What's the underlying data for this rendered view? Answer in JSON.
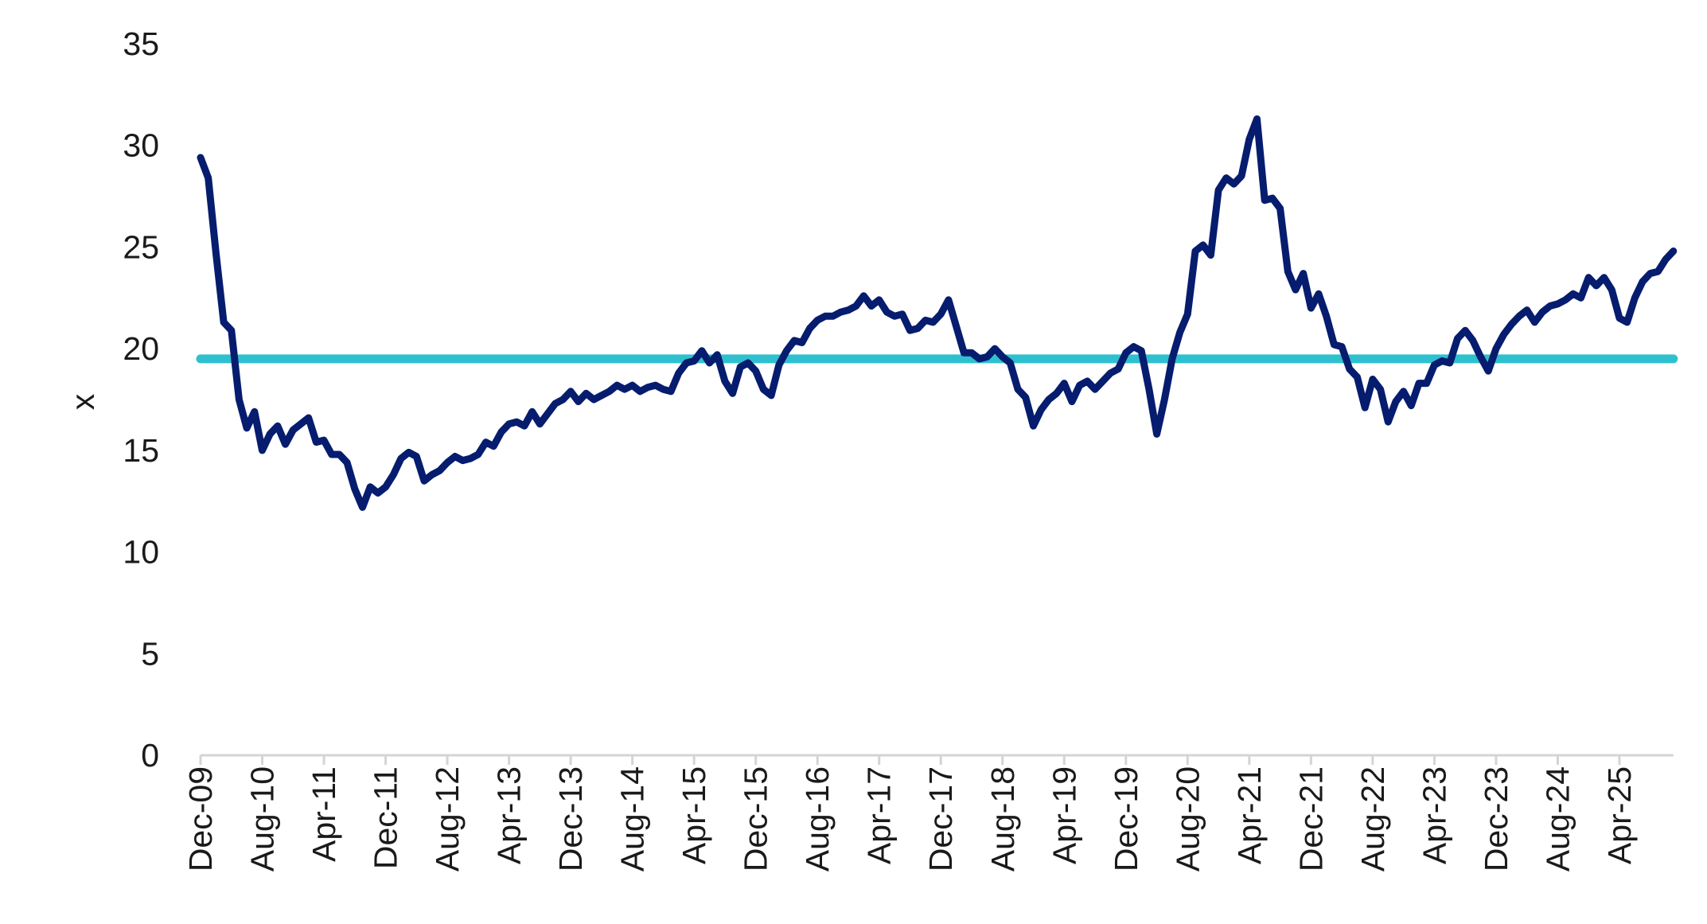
{
  "chart_data": {
    "type": "line",
    "title": "",
    "xlabel": "",
    "ylabel": "x",
    "ylim": [
      0,
      35
    ],
    "yticks": [
      0,
      5,
      10,
      15,
      20,
      25,
      30,
      35
    ],
    "xtick_labels": [
      "Dec-09",
      "Aug-10",
      "Apr-11",
      "Dec-11",
      "Aug-12",
      "Apr-13",
      "Dec-13",
      "Aug-14",
      "Apr-15",
      "Dec-15",
      "Aug-16",
      "Apr-17",
      "Dec-17",
      "Aug-18",
      "Apr-19",
      "Dec-19",
      "Aug-20",
      "Apr-21",
      "Dec-21",
      "Aug-22",
      "Apr-23",
      "Dec-23",
      "Aug-24",
      "Apr-25"
    ],
    "grid": false,
    "legend": "none",
    "colors": {
      "series": "#061c6e",
      "average": "#2fc0cf",
      "axis": "#d4d4d4"
    },
    "x": [
      "Dec-09",
      "Jan-10",
      "Feb-10",
      "Mar-10",
      "Apr-10",
      "May-10",
      "Jun-10",
      "Jul-10",
      "Aug-10",
      "Sep-10",
      "Oct-10",
      "Nov-10",
      "Dec-10",
      "Jan-11",
      "Feb-11",
      "Mar-11",
      "Apr-11",
      "May-11",
      "Jun-11",
      "Jul-11",
      "Aug-11",
      "Sep-11",
      "Oct-11",
      "Nov-11",
      "Dec-11",
      "Jan-12",
      "Feb-12",
      "Mar-12",
      "Apr-12",
      "May-12",
      "Jun-12",
      "Jul-12",
      "Aug-12",
      "Sep-12",
      "Oct-12",
      "Nov-12",
      "Dec-12",
      "Jan-13",
      "Feb-13",
      "Mar-13",
      "Apr-13",
      "May-13",
      "Jun-13",
      "Jul-13",
      "Aug-13",
      "Sep-13",
      "Oct-13",
      "Nov-13",
      "Dec-13",
      "Jan-14",
      "Feb-14",
      "Mar-14",
      "Apr-14",
      "May-14",
      "Jun-14",
      "Jul-14",
      "Aug-14",
      "Sep-14",
      "Oct-14",
      "Nov-14",
      "Dec-14",
      "Jan-15",
      "Feb-15",
      "Mar-15",
      "Apr-15",
      "May-15",
      "Jun-15",
      "Jul-15",
      "Aug-15",
      "Sep-15",
      "Oct-15",
      "Nov-15",
      "Dec-15",
      "Jan-16",
      "Feb-16",
      "Mar-16",
      "Apr-16",
      "May-16",
      "Jun-16",
      "Jul-16",
      "Aug-16",
      "Sep-16",
      "Oct-16",
      "Nov-16",
      "Dec-16",
      "Jan-17",
      "Feb-17",
      "Mar-17",
      "Apr-17",
      "May-17",
      "Jun-17",
      "Jul-17",
      "Aug-17",
      "Sep-17",
      "Oct-17",
      "Nov-17",
      "Dec-17",
      "Jan-18",
      "Feb-18",
      "Mar-18",
      "Apr-18",
      "May-18",
      "Jun-18",
      "Jul-18",
      "Aug-18",
      "Sep-18",
      "Oct-18",
      "Nov-18",
      "Dec-18",
      "Jan-19",
      "Feb-19",
      "Mar-19",
      "Apr-19",
      "May-19",
      "Jun-19",
      "Jul-19",
      "Aug-19",
      "Sep-19",
      "Oct-19",
      "Nov-19",
      "Dec-19",
      "Jan-20",
      "Feb-20",
      "Mar-20",
      "Apr-20",
      "May-20",
      "Jun-20",
      "Jul-20",
      "Aug-20",
      "Sep-20",
      "Oct-20",
      "Nov-20",
      "Dec-20",
      "Jan-21",
      "Feb-21",
      "Mar-21",
      "Apr-21",
      "May-21",
      "Jun-21",
      "Jul-21",
      "Aug-21",
      "Sep-21",
      "Oct-21",
      "Nov-21",
      "Dec-21",
      "Jan-22",
      "Feb-22",
      "Mar-22",
      "Apr-22",
      "May-22",
      "Jun-22",
      "Jul-22",
      "Aug-22",
      "Sep-22",
      "Oct-22",
      "Nov-22",
      "Dec-22",
      "Jan-23",
      "Feb-23",
      "Mar-23",
      "Apr-23",
      "May-23",
      "Jun-23",
      "Jul-23",
      "Aug-23",
      "Sep-23",
      "Oct-23",
      "Nov-23",
      "Dec-23",
      "Jan-24",
      "Feb-24",
      "Mar-24",
      "Apr-24",
      "May-24",
      "Jun-24",
      "Jul-24",
      "Aug-24",
      "Sep-24",
      "Oct-24",
      "Nov-24",
      "Dec-24",
      "Jan-25",
      "Feb-25",
      "Mar-25",
      "Apr-25",
      "May-25",
      "Jun-25",
      "Jul-25",
      "Aug-25",
      "Sep-25",
      "Oct-25",
      "Nov-25"
    ],
    "series": [
      {
        "values": [
          29.4,
          28.4,
          24.7,
          21.3,
          20.9,
          17.5,
          16.1,
          16.9,
          15.0,
          15.8,
          16.2,
          15.3,
          16.0,
          16.3,
          16.6,
          15.4,
          15.5,
          14.8,
          14.8,
          14.4,
          13.1,
          12.2,
          13.2,
          12.9,
          13.2,
          13.8,
          14.6,
          14.9,
          14.7,
          13.5,
          13.8,
          14.0,
          14.4,
          14.7,
          14.5,
          14.6,
          14.8,
          15.4,
          15.2,
          15.9,
          16.3,
          16.4,
          16.2,
          16.9,
          16.3,
          16.8,
          17.3,
          17.5,
          17.9,
          17.4,
          17.8,
          17.5,
          17.7,
          17.9,
          18.2,
          18.0,
          18.2,
          17.9,
          18.1,
          18.2,
          18.0,
          17.9,
          18.8,
          19.3,
          19.4,
          19.9,
          19.3,
          19.7,
          18.4,
          17.8,
          19.1,
          19.3,
          18.9,
          18.0,
          17.7,
          19.2,
          19.9,
          20.4,
          20.3,
          21.0,
          21.4,
          21.6,
          21.6,
          21.8,
          21.9,
          22.1,
          22.6,
          22.1,
          22.4,
          21.8,
          21.6,
          21.7,
          20.9,
          21.0,
          21.4,
          21.3,
          21.7,
          22.4,
          21.1,
          19.8,
          19.8,
          19.5,
          19.6,
          20.0,
          19.6,
          19.3,
          18.0,
          17.6,
          16.2,
          17.0,
          17.5,
          17.8,
          18.3,
          17.4,
          18.2,
          18.4,
          18.0,
          18.4,
          18.8,
          19.0,
          19.8,
          20.1,
          19.9,
          18.0,
          15.8,
          17.5,
          19.5,
          20.8,
          21.7,
          24.8,
          25.1,
          24.6,
          27.8,
          28.4,
          28.1,
          28.5,
          30.3,
          31.3,
          27.3,
          27.4,
          26.9,
          23.8,
          22.9,
          23.7,
          22.0,
          22.7,
          21.6,
          20.2,
          20.1,
          19.0,
          18.6,
          17.1,
          18.5,
          18.0,
          16.4,
          17.4,
          17.9,
          17.2,
          18.3,
          18.3,
          19.2,
          19.4,
          19.3,
          20.5,
          20.9,
          20.4,
          19.6,
          18.9,
          20.0,
          20.7,
          21.2,
          21.6,
          21.9,
          21.3,
          21.8,
          22.1,
          22.2,
          22.4,
          22.7,
          22.5,
          23.5,
          23.1,
          23.5,
          22.9,
          21.5,
          21.3,
          22.5,
          23.3,
          23.7,
          23.8,
          24.4,
          24.8
        ]
      },
      {
        "values_constant": 19.5
      }
    ]
  }
}
